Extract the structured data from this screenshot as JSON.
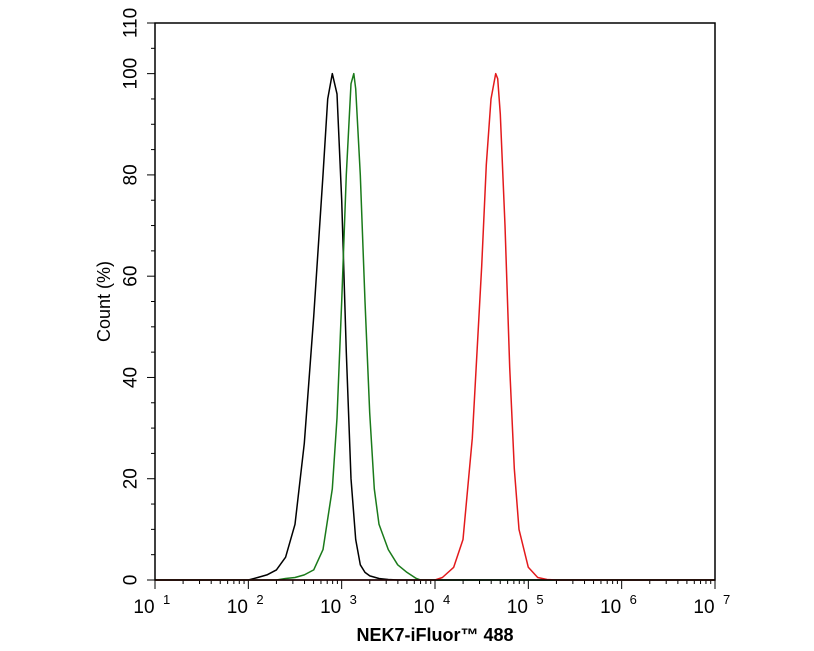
{
  "chart_data": {
    "type": "line",
    "title": "",
    "xlabel": "NEK7-iFluor™ 488",
    "ylabel": "Count  (%)",
    "x_scale": "log",
    "xlim": [
      10,
      10000000
    ],
    "ylim": [
      0,
      110
    ],
    "x_ticks": [
      {
        "value": 10,
        "base": "10",
        "exp": "1"
      },
      {
        "value": 100,
        "base": "10",
        "exp": "2"
      },
      {
        "value": 1000,
        "base": "10",
        "exp": "3"
      },
      {
        "value": 10000,
        "base": "10",
        "exp": "4"
      },
      {
        "value": 100000,
        "base": "10",
        "exp": "5"
      },
      {
        "value": 1000000,
        "base": "10",
        "exp": "6"
      },
      {
        "value": 10000000,
        "base": "10",
        "exp": "7"
      }
    ],
    "y_ticks": [
      0,
      20,
      40,
      60,
      80,
      100,
      110
    ],
    "grid": false,
    "legend": "none",
    "series": [
      {
        "color": "#000000",
        "x": [
          10,
          50,
          100,
          126,
          158,
          200,
          251,
          316,
          398,
          501,
          631,
          708,
          794,
          891,
          1000,
          1122,
          1259,
          1413,
          1585,
          1778,
          2000,
          2512,
          3162,
          4000,
          10000,
          10000000
        ],
        "y": [
          0,
          0,
          0,
          0.5,
          1,
          2,
          4.5,
          11,
          27,
          52,
          80,
          95,
          100,
          96,
          75,
          45,
          20,
          8,
          3,
          1.5,
          0.8,
          0.3,
          0.1,
          0,
          0,
          0
        ]
      },
      {
        "color": "#1a7a1a",
        "x": [
          10,
          100,
          200,
          251,
          316,
          398,
          501,
          631,
          794,
          891,
          1000,
          1122,
          1259,
          1349,
          1413,
          1585,
          1778,
          1995,
          2239,
          2512,
          3162,
          3981,
          5012,
          6310,
          7000,
          10000000
        ],
        "y": [
          0,
          0,
          0,
          0.3,
          0.5,
          1,
          2,
          6,
          18,
          32,
          55,
          80,
          98,
          100,
          97,
          80,
          55,
          33,
          18,
          11,
          6,
          3,
          1.5,
          0.3,
          0,
          0
        ]
      },
      {
        "color": "#e31a1c",
        "x": [
          10,
          10000,
          12000,
          15849,
          19953,
          25119,
          31623,
          35481,
          39811,
          44668,
          47000,
          50119,
          56234,
          63096,
          70795,
          79433,
          100000,
          125893,
          158489,
          200000,
          10000000
        ],
        "y": [
          0,
          0,
          0.5,
          2.5,
          8,
          28,
          62,
          82,
          95,
          100,
          99,
          92,
          70,
          42,
          22,
          10,
          2.5,
          0.5,
          0.1,
          0,
          0
        ]
      }
    ]
  }
}
